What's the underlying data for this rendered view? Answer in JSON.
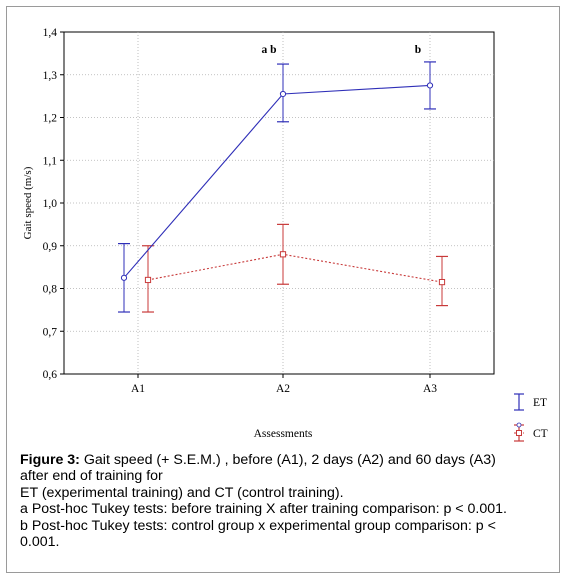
{
  "chart_data": {
    "type": "line",
    "title": "",
    "xlabel": "Assessments",
    "ylabel": "Gait speed (m/s)",
    "categories": [
      "A1",
      "A2",
      "A3"
    ],
    "ylim": [
      0.6,
      1.4
    ],
    "yticks": [
      "0,6",
      "0,7",
      "0,8",
      "0,9",
      "1,0",
      "1,1",
      "1,2",
      "1,3",
      "1,4"
    ],
    "grid": true,
    "legend_position": "bottom-right",
    "annotations": [
      {
        "category": "A2",
        "text": "a b"
      },
      {
        "category": "A3",
        "text": "b"
      }
    ],
    "series": [
      {
        "name": "ET",
        "color": "#2f2fb8",
        "line_style": "solid",
        "marker": "circle",
        "values": [
          0.825,
          1.255,
          1.275
        ],
        "err_low": [
          0.745,
          1.19,
          1.22
        ],
        "err_high": [
          0.905,
          1.325,
          1.33
        ]
      },
      {
        "name": "CT",
        "color": "#c83a3a",
        "line_style": "dotted",
        "marker": "square",
        "values": [
          0.82,
          0.88,
          0.815
        ],
        "err_low": [
          0.745,
          0.81,
          0.76
        ],
        "err_high": [
          0.9,
          0.95,
          0.875
        ]
      }
    ]
  },
  "caption": {
    "label": "Figure 3:",
    "line1": " Gait speed (+ S.E.M.) , before (A1), 2 days (A2) and 60 days (A3)",
    "line2": "after end of training for",
    "line3": "ET (experimental training) and CT (control training).",
    "line4": "a Post-hoc Tukey tests: before training X after training comparison: p < 0.001.",
    "line5": "b Post-hoc Tukey tests: control group x experimental group comparison: p <",
    "line6": "0.001."
  }
}
